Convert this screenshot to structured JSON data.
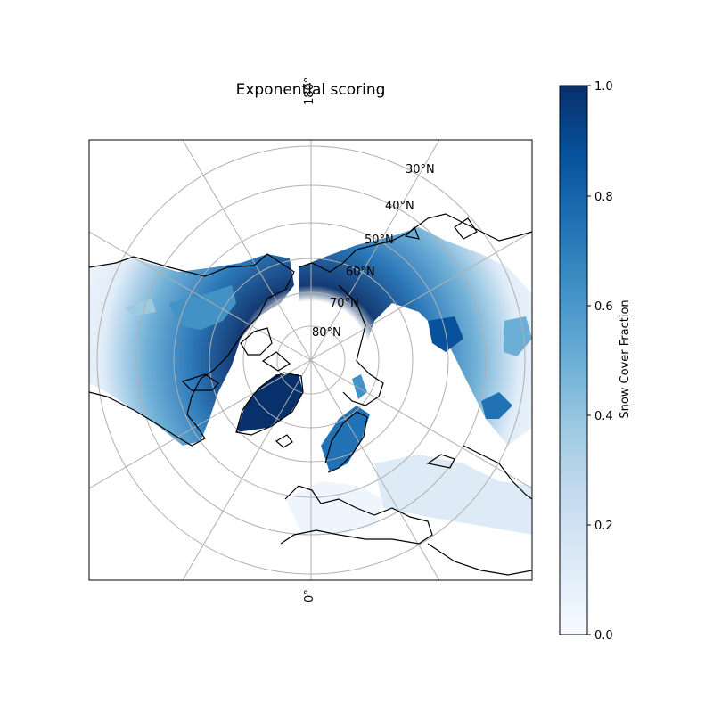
{
  "title": "Exponential scoring",
  "map": {
    "projection": "north-polar-stereographic",
    "central_meridian_label_top": "180°",
    "central_meridian_label_bottom": "0°",
    "lat_labels": [
      "30°N",
      "40°N",
      "50°N",
      "60°N",
      "70°N",
      "80°N"
    ],
    "gridlines": true,
    "coastlines": true,
    "land_color": "#ffffff",
    "ocean_color": "#ffffff"
  },
  "colorbar": {
    "label": "Snow Cover Fraction",
    "colormap": "Blues",
    "ticks": [
      "0.0",
      "0.2",
      "0.4",
      "0.6",
      "0.8",
      "1.0"
    ],
    "range": [
      0.0,
      1.0
    ]
  },
  "colors": {
    "high": "#08306b",
    "mid": "#4292c6",
    "low": "#c6dbef",
    "zero": "#f7fbff",
    "grid": "#b0b0b0"
  }
}
